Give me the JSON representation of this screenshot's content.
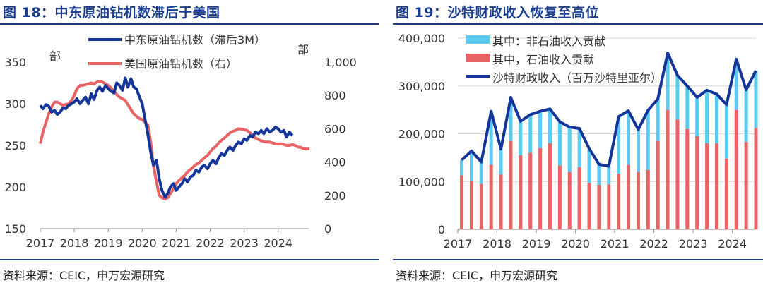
{
  "left": {
    "title": "图 18：中东原油钻机数滞后于美国",
    "source": "资料来源：CEIC，申万宏源研究",
    "chart_data": {
      "type": "line",
      "legend_position": "top",
      "x_ticks": [
        "2017",
        "2018",
        "2019",
        "2020",
        "2021",
        "2022",
        "2023",
        "2024"
      ],
      "xlim": [
        2017.0,
        2024.9
      ],
      "left_axis": {
        "unit": "部",
        "ticks": [
          "150",
          "200",
          "250",
          "300",
          "350"
        ],
        "ylim": [
          150,
          350
        ]
      },
      "right_axis": {
        "unit": "部",
        "ticks": [
          "0",
          "200",
          "400",
          "600",
          "800",
          "1,000"
        ],
        "ylim": [
          0,
          1000
        ]
      },
      "series": [
        {
          "name": "中东原油钻机数（滞后3M）",
          "axis": "left",
          "color": "#14359a",
          "x": [
            2017.0,
            2017.08,
            2017.17,
            2017.25,
            2017.33,
            2017.42,
            2017.5,
            2017.58,
            2017.67,
            2017.75,
            2017.83,
            2017.92,
            2018.0,
            2018.08,
            2018.17,
            2018.25,
            2018.33,
            2018.42,
            2018.5,
            2018.58,
            2018.67,
            2018.75,
            2018.83,
            2018.92,
            2019.0,
            2019.08,
            2019.17,
            2019.25,
            2019.33,
            2019.42,
            2019.5,
            2019.58,
            2019.67,
            2019.75,
            2019.83,
            2019.92,
            2020.0,
            2020.08,
            2020.17,
            2020.25,
            2020.33,
            2020.42,
            2020.5,
            2020.58,
            2020.67,
            2020.75,
            2020.83,
            2020.92,
            2021.0,
            2021.08,
            2021.17,
            2021.25,
            2021.33,
            2021.42,
            2021.5,
            2021.58,
            2021.67,
            2021.75,
            2021.83,
            2021.92,
            2022.0,
            2022.08,
            2022.17,
            2022.25,
            2022.33,
            2022.42,
            2022.5,
            2022.58,
            2022.67,
            2022.75,
            2022.83,
            2022.92,
            2023.0,
            2023.08,
            2023.17,
            2023.25,
            2023.33,
            2023.42,
            2023.5,
            2023.58,
            2023.67,
            2023.75,
            2023.83,
            2023.92,
            2024.0,
            2024.08,
            2024.17,
            2024.25,
            2024.33,
            2024.42
          ],
          "y": [
            298,
            294,
            299,
            297,
            290,
            292,
            287,
            290,
            295,
            294,
            298,
            300,
            302,
            306,
            300,
            304,
            308,
            300,
            312,
            305,
            316,
            320,
            315,
            322,
            318,
            315,
            313,
            325,
            322,
            316,
            331,
            320,
            330,
            320,
            318,
            308,
            300,
            282,
            262,
            242,
            226,
            232,
            210,
            196,
            188,
            192,
            200,
            204,
            196,
            200,
            204,
            210,
            206,
            212,
            214,
            220,
            218,
            224,
            226,
            222,
            228,
            232,
            228,
            235,
            240,
            238,
            244,
            248,
            244,
            250,
            254,
            252,
            258,
            256,
            262,
            260,
            266,
            264,
            268,
            264,
            270,
            266,
            268,
            272,
            270,
            266,
            268,
            260,
            266,
            262
          ]
        },
        {
          "name": "美国原油钻机数（右）",
          "axis": "right",
          "color": "#e86464",
          "x": [
            2017.0,
            2017.08,
            2017.17,
            2017.25,
            2017.33,
            2017.42,
            2017.5,
            2017.58,
            2017.67,
            2017.75,
            2017.83,
            2017.92,
            2018.0,
            2018.08,
            2018.17,
            2018.25,
            2018.33,
            2018.42,
            2018.5,
            2018.58,
            2018.67,
            2018.75,
            2018.83,
            2018.92,
            2019.0,
            2019.08,
            2019.17,
            2019.25,
            2019.33,
            2019.42,
            2019.5,
            2019.58,
            2019.67,
            2019.75,
            2019.83,
            2019.92,
            2020.0,
            2020.08,
            2020.17,
            2020.25,
            2020.33,
            2020.42,
            2020.5,
            2020.58,
            2020.67,
            2020.75,
            2020.83,
            2020.92,
            2021.0,
            2021.08,
            2021.17,
            2021.25,
            2021.33,
            2021.42,
            2021.5,
            2021.58,
            2021.67,
            2021.75,
            2021.83,
            2021.92,
            2022.0,
            2022.08,
            2022.17,
            2022.25,
            2022.33,
            2022.42,
            2022.5,
            2022.58,
            2022.67,
            2022.75,
            2022.83,
            2022.92,
            2023.0,
            2023.08,
            2023.17,
            2023.25,
            2023.33,
            2023.42,
            2023.5,
            2023.58,
            2023.67,
            2023.75,
            2023.83,
            2023.92,
            2024.0,
            2024.08,
            2024.17,
            2024.25,
            2024.33,
            2024.42,
            2024.5,
            2024.58,
            2024.67,
            2024.75,
            2024.83,
            2024.92
          ],
          "y": [
            510,
            580,
            640,
            690,
            730,
            760,
            760,
            750,
            740,
            745,
            750,
            770,
            800,
            840,
            860,
            860,
            865,
            870,
            875,
            870,
            880,
            885,
            880,
            870,
            860,
            845,
            825,
            805,
            790,
            780,
            770,
            745,
            715,
            690,
            675,
            660,
            655,
            640,
            620,
            520,
            380,
            280,
            200,
            185,
            178,
            186,
            210,
            240,
            270,
            290,
            305,
            320,
            340,
            355,
            370,
            385,
            395,
            410,
            425,
            440,
            460,
            480,
            495,
            515,
            530,
            545,
            560,
            575,
            585,
            590,
            600,
            598,
            595,
            590,
            575,
            560,
            545,
            535,
            528,
            522,
            520,
            520,
            515,
            510,
            508,
            510,
            505,
            500,
            500,
            505,
            500,
            490,
            488,
            480,
            478,
            480
          ]
        }
      ]
    }
  },
  "right": {
    "title": "图 19：沙特财政收入恢复至高位",
    "source": "资料来源：CEIC，申万宏源研究",
    "chart_data": {
      "type": "bar",
      "stacked": true,
      "legend_position": "top-left",
      "x_ticks": [
        "2017",
        "2018",
        "2019",
        "2020",
        "2021",
        "2022",
        "2023",
        "2024"
      ],
      "xlim": [
        2017.0,
        2024.6
      ],
      "y_ticks": [
        "0",
        "100,000",
        "200,000",
        "300,000",
        "400,000"
      ],
      "ylim": [
        0,
        400000
      ],
      "categories": [
        "2017Q1",
        "2017Q2",
        "2017Q3",
        "2017Q4",
        "2018Q1",
        "2018Q2",
        "2018Q3",
        "2018Q4",
        "2019Q1",
        "2019Q2",
        "2019Q3",
        "2019Q4",
        "2020Q1",
        "2020Q2",
        "2020Q3",
        "2020Q4",
        "2021Q1",
        "2021Q2",
        "2021Q3",
        "2021Q4",
        "2022Q1",
        "2022Q2",
        "2022Q3",
        "2022Q4",
        "2023Q1",
        "2023Q2",
        "2023Q3",
        "2023Q4",
        "2024Q1",
        "2024Q2",
        "2024Q3"
      ],
      "x": [
        2017.1,
        2017.35,
        2017.6,
        2017.85,
        2018.1,
        2018.35,
        2018.6,
        2018.85,
        2019.1,
        2019.35,
        2019.6,
        2019.85,
        2020.1,
        2020.35,
        2020.6,
        2020.85,
        2021.1,
        2021.35,
        2021.6,
        2021.85,
        2022.1,
        2022.35,
        2022.6,
        2022.85,
        2023.1,
        2023.35,
        2023.6,
        2023.85,
        2024.1,
        2024.35,
        2024.6
      ],
      "series": [
        {
          "name": "其中：非石油收入贡献",
          "type": "bar",
          "color": "#5ccbf2",
          "values": [
            32000,
            62000,
            46000,
            112000,
            53000,
            91000,
            71000,
            80000,
            77000,
            72000,
            91000,
            94000,
            81000,
            72000,
            43000,
            38000,
            120000,
            113000,
            89000,
            125000,
            88000,
            119000,
            92000,
            90000,
            81000,
            111000,
            103000,
            113000,
            106000,
            109000,
            120000
          ]
        },
        {
          "name": "其中，石油收入贡献",
          "type": "bar",
          "color": "#e86464",
          "values": [
            113000,
            102000,
            95000,
            135000,
            115000,
            185000,
            155000,
            160000,
            170000,
            180000,
            134000,
            120000,
            130000,
            97000,
            93000,
            94000,
            116000,
            135000,
            120000,
            124000,
            185000,
            250000,
            230000,
            210000,
            195000,
            180000,
            180000,
            148000,
            250000,
            183000,
            212000
          ]
        },
        {
          "name": "沙特财政收入（百万沙特里亚尔）",
          "type": "line",
          "color": "#14359a",
          "values": [
            145000,
            164000,
            141000,
            247000,
            168000,
            276000,
            226000,
            240000,
            247000,
            252000,
            225000,
            214000,
            211000,
            169000,
            136000,
            132000,
            236000,
            248000,
            209000,
            249000,
            273000,
            369000,
            322000,
            300000,
            276000,
            291000,
            283000,
            261000,
            356000,
            292000,
            332000
          ]
        }
      ]
    }
  }
}
